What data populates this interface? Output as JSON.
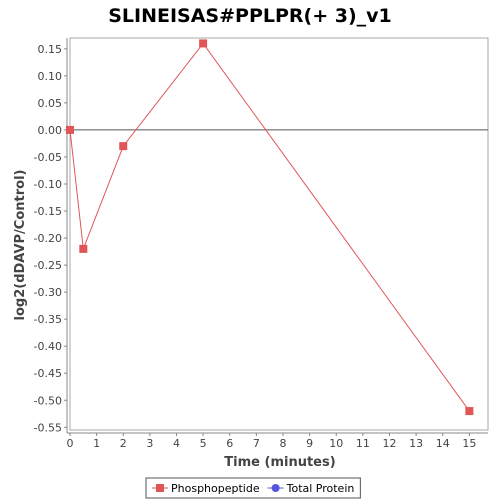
{
  "chart_data": {
    "type": "line",
    "title": "SLINEISAS#PPLPR(+ 3)_v1",
    "xlabel": "Time (minutes)",
    "ylabel": "log2(dDAVP/Control)",
    "xlim": [
      0,
      15.7
    ],
    "ylim": [
      -0.555,
      0.17
    ],
    "xticks": [
      0,
      1,
      2,
      3,
      4,
      5,
      6,
      7,
      8,
      9,
      10,
      11,
      12,
      13,
      14,
      15
    ],
    "yticks": [
      0.15,
      0.1,
      0.05,
      0.0,
      -0.05,
      -0.1,
      -0.15,
      -0.2,
      -0.25,
      -0.3,
      -0.35,
      -0.4,
      -0.45,
      -0.5,
      -0.55
    ],
    "ytick_labels": [
      "0.15",
      "0.10",
      "0.05",
      "0.00",
      "-0.05",
      "-0.10",
      "-0.15",
      "-0.20",
      "-0.25",
      "-0.30",
      "-0.35",
      "-0.40",
      "-0.45",
      "-0.50",
      "-0.55"
    ],
    "zero_line": true,
    "grid": false,
    "legend_position": "bottom",
    "series": [
      {
        "name": "Phosphopeptide",
        "color": "#e05555",
        "marker": "square",
        "x": [
          0,
          0.5,
          2,
          5,
          15
        ],
        "y": [
          0.0,
          -0.22,
          -0.03,
          0.16,
          -0.52
        ]
      },
      {
        "name": "Total Protein",
        "color": "#5555e0",
        "marker": "circle",
        "x": [],
        "y": []
      }
    ]
  }
}
